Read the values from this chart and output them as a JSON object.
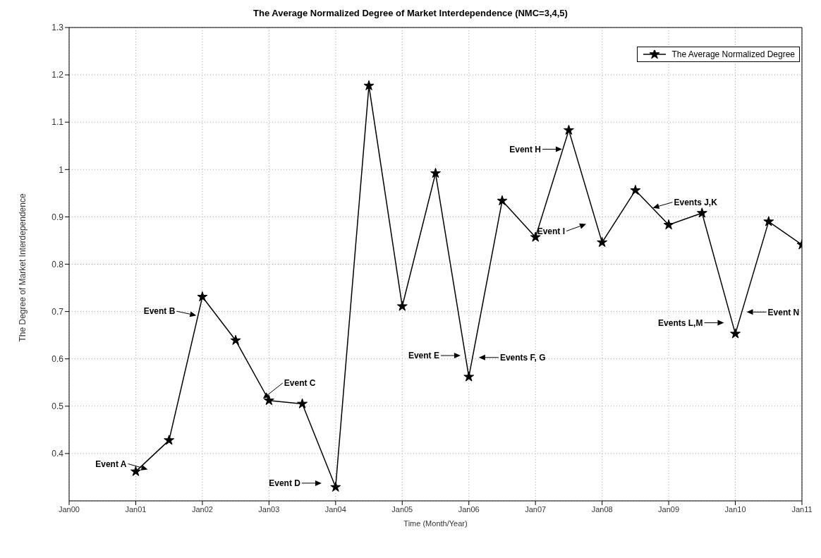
{
  "chart_data": {
    "type": "line",
    "title": "The Average Normalized Degree of Market Interdependence (NMC=3,4,5)",
    "xlabel": "Time (Month/Year)",
    "ylabel": "The Degree of Market Interdependence",
    "x": [
      "2001-01",
      "2001-07",
      "2002-01",
      "2002-07",
      "2003-01",
      "2003-07",
      "2004-01",
      "2004-07",
      "2005-01",
      "2005-07",
      "2006-01",
      "2006-07",
      "2007-01",
      "2007-07",
      "2008-01",
      "2008-07",
      "2009-01",
      "2009-07",
      "2010-01",
      "2010-07",
      "2011-01"
    ],
    "series": [
      {
        "name": "The Average Normalized Degree",
        "color": "#000000",
        "values": [
          0.362,
          0.428,
          0.731,
          0.639,
          0.512,
          0.505,
          0.329,
          1.177,
          0.711,
          0.992,
          0.562,
          0.934,
          0.857,
          1.083,
          0.846,
          0.956,
          0.883,
          0.908,
          0.653,
          0.89,
          0.841
        ]
      }
    ],
    "xlim": [
      "2000-01",
      "2011-01"
    ],
    "xticks": [
      {
        "value": "2000-01",
        "label": "Jan00"
      },
      {
        "value": "2001-01",
        "label": "Jan01"
      },
      {
        "value": "2002-01",
        "label": "Jan02"
      },
      {
        "value": "2003-01",
        "label": "Jan03"
      },
      {
        "value": "2004-01",
        "label": "Jan04"
      },
      {
        "value": "2005-01",
        "label": "Jan05"
      },
      {
        "value": "2006-01",
        "label": "Jan06"
      },
      {
        "value": "2007-01",
        "label": "Jan07"
      },
      {
        "value": "2008-01",
        "label": "Jan08"
      },
      {
        "value": "2009-01",
        "label": "Jan09"
      },
      {
        "value": "2010-01",
        "label": "Jan10"
      },
      {
        "value": "2011-01",
        "label": "Jan11"
      }
    ],
    "ylim": [
      0.3,
      1.3
    ],
    "yticks": [
      0.4,
      0.5,
      0.6,
      0.7,
      0.8,
      0.9,
      1,
      1.1,
      1.2,
      1.3
    ],
    "grid": true,
    "legend": "top right",
    "marker": "star",
    "line_style": "solid",
    "annotations": [
      "Event A",
      "Event B",
      "Event C",
      "Event D",
      "Event E",
      "Events F, G",
      "Event H",
      "Event I",
      "Events J,K",
      "Events L,M",
      "Event N"
    ]
  }
}
